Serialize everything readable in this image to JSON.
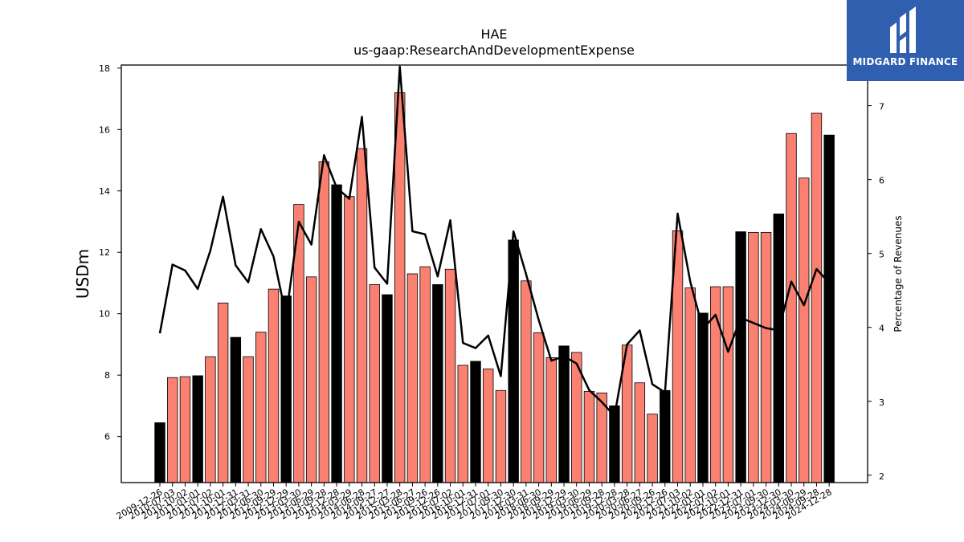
{
  "brand": {
    "name": "MIDGARD FINANCE",
    "background": "#2f5fae",
    "text_color": "#ffffff"
  },
  "colors": {
    "bar_primary": "#000000",
    "bar_secondary": "#fa8072",
    "line": "#000000"
  },
  "chart_data": {
    "type": "bar",
    "title": "HAE",
    "subtitle": "us-gaap:ResearchAndDevelopmentExpense",
    "ylabel": "USDm",
    "y2label": "Percentage of Revenues",
    "ylim": [
      4.5,
      18.1
    ],
    "y2lim": [
      1.9,
      7.55
    ],
    "yticks": [
      6,
      8,
      10,
      12,
      14,
      16,
      18
    ],
    "y2ticks": [
      2,
      3,
      4,
      5,
      6,
      7
    ],
    "categories": [
      "2009-12-26",
      "2010-07-03",
      "2010-10-02",
      "2011-01-01",
      "2011-07-02",
      "2011-10-01",
      "2011-12-31",
      "2012-03-31",
      "2012-06-30",
      "2012-09-29",
      "2012-12-29",
      "2013-03-30",
      "2013-06-29",
      "2013-09-28",
      "2013-12-28",
      "2014-03-29",
      "2014-06-28",
      "2014-09-27",
      "2014-12-27",
      "2015-03-28",
      "2015-06-27",
      "2015-09-26",
      "2015-12-26",
      "2016-07-02",
      "2016-10-01",
      "2016-12-31",
      "2017-07-01",
      "2017-09-30",
      "2017-12-30",
      "2018-03-31",
      "2018-06-30",
      "2018-09-29",
      "2018-12-29",
      "2019-03-30",
      "2019-06-29",
      "2019-09-28",
      "2019-12-28",
      "2020-03-28",
      "2020-06-27",
      "2020-09-26",
      "2020-12-26",
      "2021-07-03",
      "2021-10-02",
      "2022-01-01",
      "2022-07-02",
      "2022-10-01",
      "2022-12-31",
      "2023-07-01",
      "2023-09-30",
      "2023-12-30",
      "2024-03-30",
      "2024-06-29",
      "2024-09-28",
      "2024-12-28"
    ],
    "xtick_labels_shown": [
      "2009-12-26",
      "2010-07-03",
      "2010-10-02",
      "2011-01-01",
      "2011-07-02",
      "2011-10-01",
      "2011-12-31",
      "2012-03-31",
      "2012-06-30",
      "2012-09-29",
      "2012-12-29",
      "2013-03-30",
      "2013-06-29",
      "2013-09-28",
      "2013-12-28",
      "2014-03-29",
      "2014-06-28",
      "2014-09-27",
      "2014-12-27",
      "2015-03-28",
      "2015-06-27",
      "2015-09-26",
      "2015-12-26",
      "2016-07-02",
      "2016-10-01",
      "2016-12-31",
      "2017-07-01",
      "2017-09-30",
      "2017-12-30",
      "2018-03-31",
      "2018-06-30",
      "2018-09-29",
      "2018-12-29",
      "2019-03-30",
      "2019-06-29",
      "2019-09-28",
      "2019-12-28",
      "2020-03-28",
      "2020-06-27",
      "2020-09-26",
      "2020-12-26",
      "2021-07-03",
      "2021-10-02",
      "2022-01-01",
      "2022-07-02",
      "2022-10-01",
      "2022-12-31",
      "2023-07-01",
      "2023-09-30",
      "2023-12-30",
      "2024-03-30",
      "2024-06-29",
      "2024-09-28",
      "2024-12-28"
    ],
    "series": [
      {
        "values": [
          6.45,
          7.92,
          7.95,
          7.98,
          8.6,
          10.35,
          9.23,
          8.6,
          9.4,
          10.8,
          10.58,
          13.56,
          11.2,
          14.95,
          14.2,
          13.82,
          15.38,
          10.95,
          10.62,
          17.2,
          11.3,
          11.53,
          10.95,
          11.45,
          8.32,
          8.45,
          8.2,
          7.5,
          12.4,
          11.07,
          9.38,
          8.57,
          8.95,
          8.74,
          7.47,
          7.42,
          7.0,
          8.98,
          7.75,
          6.73,
          7.5,
          12.7,
          10.84,
          10.02,
          10.88,
          10.88,
          12.67,
          12.65,
          12.65,
          13.25,
          15.87,
          14.42,
          16.53,
          15.82
        ],
        "colors": [
          "primary",
          "secondary",
          "secondary",
          "primary",
          "secondary",
          "secondary",
          "primary",
          "secondary",
          "secondary",
          "secondary",
          "primary",
          "secondary",
          "secondary",
          "secondary",
          "primary",
          "secondary",
          "secondary",
          "secondary",
          "primary",
          "secondary",
          "secondary",
          "secondary",
          "primary",
          "secondary",
          "secondary",
          "primary",
          "secondary",
          "secondary",
          "primary",
          "secondary",
          "secondary",
          "secondary",
          "primary",
          "secondary",
          "secondary",
          "secondary",
          "primary",
          "secondary",
          "secondary",
          "secondary",
          "primary",
          "secondary",
          "secondary",
          "primary",
          "secondary",
          "secondary",
          "primary",
          "secondary",
          "secondary",
          "primary",
          "secondary",
          "secondary",
          "secondary",
          "primary"
        ]
      },
      {
        "type": "line",
        "axis": "right",
        "values": [
          3.92,
          4.85,
          4.77,
          4.52,
          5.04,
          5.77,
          4.84,
          4.61,
          5.33,
          4.96,
          4.15,
          5.43,
          5.12,
          6.33,
          5.89,
          5.74,
          6.85,
          4.81,
          4.59,
          7.53,
          5.3,
          5.26,
          4.69,
          5.45,
          3.79,
          3.72,
          3.89,
          3.34,
          5.3,
          4.72,
          4.1,
          3.55,
          3.61,
          3.51,
          3.15,
          2.99,
          2.8,
          3.77,
          3.96,
          3.23,
          3.12,
          5.54,
          4.62,
          3.98,
          4.17,
          3.67,
          4.13,
          4.06,
          3.99,
          3.96,
          4.62,
          4.3,
          4.79,
          4.6
        ]
      }
    ],
    "grid": false,
    "legend": "none"
  }
}
